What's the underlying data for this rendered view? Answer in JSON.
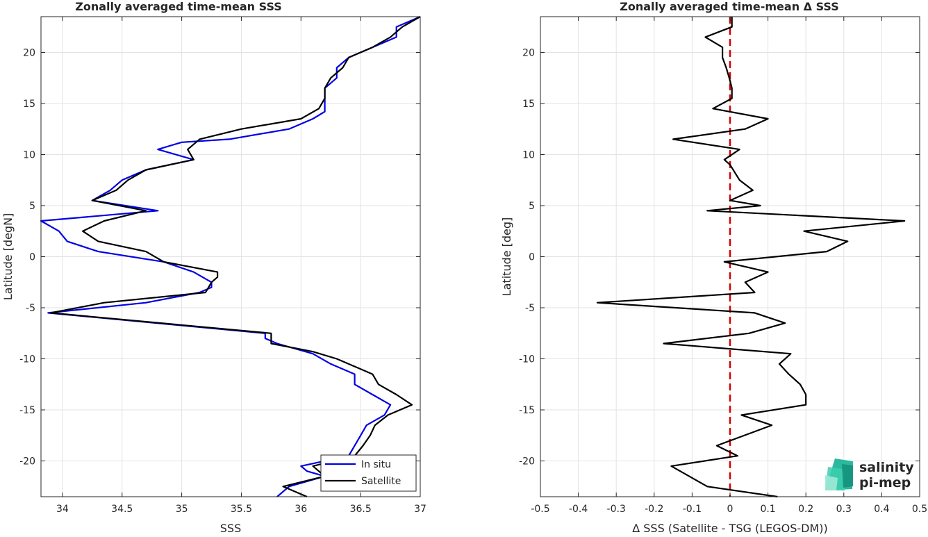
{
  "colors": {
    "in_situ": "#0000e6",
    "satellite": "#000000",
    "zero_line": "#d40000",
    "grid": "#e3e3e3",
    "axis": "#262626",
    "logo": "#1fb59a"
  },
  "chart_data": [
    {
      "type": "line",
      "title": "Zonally averaged time-mean SSS",
      "xlabel": "SSS",
      "ylabel": "Latitude [degN]",
      "xlim": [
        33.82,
        37
      ],
      "ylim": [
        -23.5,
        23.5
      ],
      "xticks": [
        34,
        34.5,
        35,
        35.5,
        36,
        36.5,
        37
      ],
      "xtick_labels": [
        "34",
        "34.5",
        "35",
        "35.5",
        "36",
        "36.5",
        "37"
      ],
      "yticks": [
        -20,
        -15,
        -10,
        -5,
        0,
        5,
        10,
        15,
        20
      ],
      "ytick_labels": [
        "-20",
        "-15",
        "-10",
        "-5",
        "0",
        "5",
        "10",
        "15",
        "20"
      ],
      "grid": true,
      "legend": {
        "position": "bottom-right",
        "entries": [
          "In situ",
          "Satellite"
        ]
      },
      "series": [
        {
          "name": "In situ",
          "points": [
            [
              37.0,
              23.5
            ],
            [
              36.8,
              22.5
            ],
            [
              36.8,
              21.5
            ],
            [
              36.6,
              20.5
            ],
            [
              36.4,
              19.5
            ],
            [
              36.3,
              18.5
            ],
            [
              36.3,
              17.5
            ],
            [
              36.2,
              16.5
            ],
            [
              36.2,
              15.5
            ],
            [
              36.2,
              14.2
            ],
            [
              36.1,
              13.5
            ],
            [
              35.9,
              12.5
            ],
            [
              35.4,
              11.5
            ],
            [
              35.0,
              11.2
            ],
            [
              34.8,
              10.5
            ],
            [
              35.1,
              9.5
            ],
            [
              34.7,
              8.5
            ],
            [
              34.5,
              7.5
            ],
            [
              34.4,
              6.5
            ],
            [
              34.25,
              5.5
            ],
            [
              34.8,
              4.5
            ],
            [
              33.82,
              3.5
            ],
            [
              33.97,
              2.5
            ],
            [
              34.04,
              1.5
            ],
            [
              34.3,
              0.5
            ],
            [
              34.85,
              -0.5
            ],
            [
              35.1,
              -1.5
            ],
            [
              35.25,
              -2.5
            ],
            [
              35.25,
              -3.0
            ],
            [
              35.15,
              -3.5
            ],
            [
              34.7,
              -4.5
            ],
            [
              33.88,
              -5.5
            ],
            [
              35.7,
              -7.5
            ],
            [
              35.7,
              -8.0
            ],
            [
              35.8,
              -8.5
            ],
            [
              36.1,
              -9.5
            ],
            [
              36.25,
              -10.5
            ],
            [
              36.45,
              -11.5
            ],
            [
              36.45,
              -12.5
            ],
            [
              36.6,
              -13.5
            ],
            [
              36.75,
              -14.5
            ],
            [
              36.7,
              -15.5
            ],
            [
              36.55,
              -16.5
            ],
            [
              36.5,
              -17.5
            ],
            [
              36.45,
              -18.5
            ],
            [
              36.4,
              -19.5
            ],
            [
              36.0,
              -20.5
            ],
            [
              36.05,
              -21.0
            ],
            [
              36.2,
              -21.5
            ],
            [
              35.9,
              -22.5
            ],
            [
              35.8,
              -23.5
            ]
          ]
        },
        {
          "name": "Satellite",
          "points": [
            [
              37.0,
              23.5
            ],
            [
              36.85,
              22.5
            ],
            [
              36.75,
              21.5
            ],
            [
              36.6,
              20.5
            ],
            [
              36.4,
              19.5
            ],
            [
              36.35,
              18.5
            ],
            [
              36.25,
              17.5
            ],
            [
              36.2,
              16.5
            ],
            [
              36.2,
              15.5
            ],
            [
              36.15,
              14.5
            ],
            [
              36.0,
              13.5
            ],
            [
              35.5,
              12.5
            ],
            [
              35.15,
              11.5
            ],
            [
              35.05,
              10.5
            ],
            [
              35.1,
              9.5
            ],
            [
              34.7,
              8.5
            ],
            [
              34.55,
              7.5
            ],
            [
              34.45,
              6.5
            ],
            [
              34.25,
              5.5
            ],
            [
              34.7,
              4.5
            ],
            [
              34.35,
              3.5
            ],
            [
              34.17,
              2.5
            ],
            [
              34.3,
              1.5
            ],
            [
              34.7,
              0.5
            ],
            [
              34.85,
              -0.5
            ],
            [
              35.3,
              -1.5
            ],
            [
              35.3,
              -2.0
            ],
            [
              35.25,
              -2.5
            ],
            [
              35.2,
              -3.5
            ],
            [
              34.35,
              -4.5
            ],
            [
              33.9,
              -5.5
            ],
            [
              35.75,
              -7.5
            ],
            [
              35.75,
              -8.5
            ],
            [
              36.1,
              -9.3
            ],
            [
              36.3,
              -10.0
            ],
            [
              36.4,
              -10.5
            ],
            [
              36.6,
              -11.5
            ],
            [
              36.65,
              -12.5
            ],
            [
              36.8,
              -13.5
            ],
            [
              36.93,
              -14.5
            ],
            [
              36.73,
              -15.5
            ],
            [
              36.62,
              -16.5
            ],
            [
              36.58,
              -17.5
            ],
            [
              36.52,
              -18.5
            ],
            [
              36.45,
              -19.5
            ],
            [
              36.1,
              -20.5
            ],
            [
              36.2,
              -21.5
            ],
            [
              35.85,
              -22.5
            ],
            [
              36.05,
              -23.5
            ]
          ]
        }
      ]
    },
    {
      "type": "line",
      "title": "Zonally averaged time-mean Δ SSS",
      "xlabel": "Δ SSS (Satellite - TSG (LEGOS-DM))",
      "ylabel": "Latitude [deg]",
      "xlim": [
        -0.5,
        0.5
      ],
      "ylim": [
        -23.5,
        23.5
      ],
      "xticks": [
        -0.5,
        -0.4,
        -0.3,
        -0.2,
        -0.1,
        0,
        0.1,
        0.2,
        0.3,
        0.4,
        0.5
      ],
      "xtick_labels": [
        "-0.5",
        "-0.4",
        "-0.3",
        "-0.2",
        "-0.1",
        "0",
        "0.1",
        "0.2",
        "0.3",
        "0.4",
        "0.5"
      ],
      "yticks": [
        -20,
        -15,
        -10,
        -5,
        0,
        5,
        10,
        15,
        20
      ],
      "ytick_labels": [
        "-20",
        "-15",
        "-10",
        "-5",
        "0",
        "5",
        "10",
        "15",
        "20"
      ],
      "grid": true,
      "reference_line": {
        "x": 0,
        "style": "dashed"
      },
      "series": [
        {
          "points": [
            [
              0.005,
              23.5
            ],
            [
              0.005,
              22.5
            ],
            [
              -0.065,
              21.5
            ],
            [
              -0.02,
              20.5
            ],
            [
              -0.02,
              19.5
            ],
            [
              -0.01,
              18.5
            ],
            [
              -0.002,
              17.5
            ],
            [
              0.005,
              16.5
            ],
            [
              0.005,
              15.5
            ],
            [
              -0.045,
              14.5
            ],
            [
              0.1,
              13.5
            ],
            [
              0.04,
              12.5
            ],
            [
              -0.15,
              11.5
            ],
            [
              0.025,
              10.5
            ],
            [
              -0.015,
              9.5
            ],
            [
              0.0,
              9.0
            ],
            [
              0.025,
              7.5
            ],
            [
              0.06,
              6.5
            ],
            [
              0.0,
              5.5
            ],
            [
              0.08,
              5.0
            ],
            [
              -0.06,
              4.5
            ],
            [
              0.46,
              3.5
            ],
            [
              0.195,
              2.5
            ],
            [
              0.31,
              1.5
            ],
            [
              0.255,
              0.5
            ],
            [
              -0.015,
              -0.5
            ],
            [
              0.1,
              -1.5
            ],
            [
              0.04,
              -2.5
            ],
            [
              0.065,
              -3.5
            ],
            [
              -0.35,
              -4.5
            ],
            [
              0.065,
              -5.5
            ],
            [
              0.145,
              -6.5
            ],
            [
              0.05,
              -7.5
            ],
            [
              -0.175,
              -8.5
            ],
            [
              0.16,
              -9.5
            ],
            [
              0.13,
              -10.5
            ],
            [
              0.155,
              -11.5
            ],
            [
              0.185,
              -12.5
            ],
            [
              0.2,
              -13.5
            ],
            [
              0.2,
              -14.5
            ],
            [
              0.03,
              -15.5
            ],
            [
              0.11,
              -16.5
            ],
            [
              -0.035,
              -18.5
            ],
            [
              0.02,
              -19.5
            ],
            [
              -0.155,
              -20.5
            ],
            [
              -0.06,
              -22.5
            ],
            [
              0.125,
              -23.5
            ]
          ]
        }
      ]
    }
  ],
  "logo": {
    "line1": "salinity",
    "line2": "pi-mep"
  }
}
